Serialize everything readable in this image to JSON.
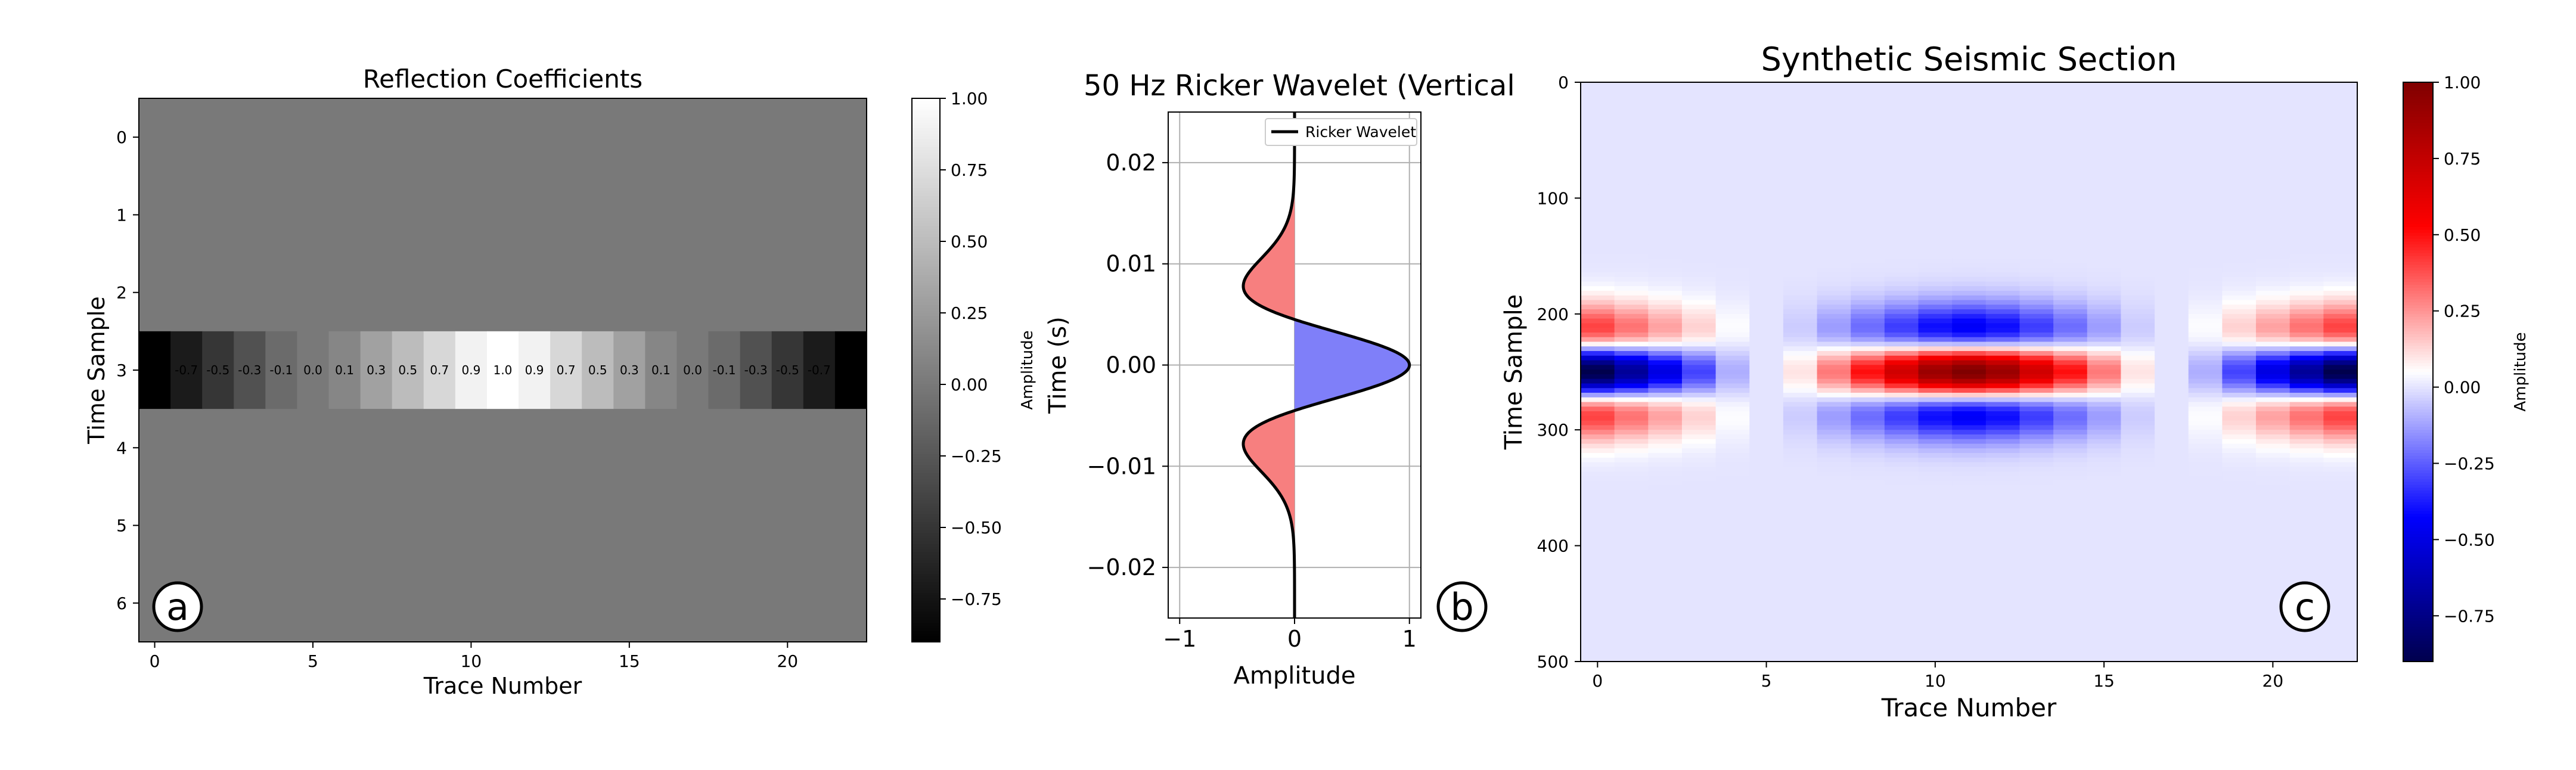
{
  "figure": {
    "panel_labels": [
      "a",
      "b",
      "c"
    ]
  },
  "chart_data": [
    {
      "type": "heatmap",
      "title": "Reflection Coefficients",
      "xlabel": "Trace Number",
      "ylabel": "Time Sample",
      "x_ticks": [
        0,
        5,
        10,
        15,
        20
      ],
      "y_ticks": [
        0,
        1,
        2,
        3,
        4,
        5,
        6
      ],
      "xlim": [
        -0.5,
        22.5
      ],
      "ylim": [
        6.5,
        -0.5
      ],
      "rows": 7,
      "cols": 23,
      "active_row": 3,
      "row_values": [
        -0.9,
        -0.7,
        -0.5,
        -0.3,
        -0.1,
        0.0,
        0.1,
        0.3,
        0.5,
        0.7,
        0.9,
        1.0,
        0.9,
        0.7,
        0.5,
        0.3,
        0.1,
        0.0,
        -0.1,
        -0.3,
        -0.5,
        -0.7,
        -0.9
      ],
      "cell_labels": [
        "-0.9",
        "-0.7",
        "-0.5",
        "-0.3",
        "-0.1",
        "0.0",
        "0.1",
        "0.3",
        "0.5",
        "0.7",
        "0.9",
        "1.0",
        "0.9",
        "0.7",
        "0.5",
        "0.3",
        "0.1",
        "0.0",
        "-0.1",
        "-0.3",
        "-0.5",
        "-0.7",
        "-0.9"
      ],
      "background_value": 0.0,
      "colormap": "gray",
      "colorbar": {
        "label": "Amplitude",
        "range": [
          -0.9,
          1.0
        ],
        "ticks": [
          1.0,
          0.75,
          0.5,
          0.25,
          0.0,
          -0.25,
          -0.5,
          -0.75
        ],
        "tick_labels": [
          "1.00",
          "0.75",
          "0.50",
          "0.25",
          "0.00",
          "−0.25",
          "−0.50",
          "−0.75"
        ]
      },
      "grid": false
    },
    {
      "type": "line",
      "title": "50 Hz Ricker Wavelet (Vertical",
      "xlabel": "Amplitude",
      "ylabel": "Time (s)",
      "frequency_hz": 50,
      "xlim": [
        -1.1,
        1.1
      ],
      "ylim": [
        -0.025,
        0.025
      ],
      "x_ticks": [
        -1,
        0,
        1
      ],
      "x_tick_labels": [
        "−1",
        "0",
        "1"
      ],
      "y_ticks": [
        0.02,
        0.01,
        0.0,
        -0.01,
        -0.02
      ],
      "y_tick_labels": [
        "0.02",
        "0.01",
        "0.00",
        "−0.01",
        "−0.02"
      ],
      "series": [
        {
          "name": "Ricker Wavelet",
          "color": "#000000"
        }
      ],
      "fill_positive_color": "#7f7ff9",
      "fill_negative_color": "#f77f7f",
      "legend": {
        "position": "top-right",
        "entries": [
          "Ricker Wavelet"
        ]
      },
      "grid": true
    },
    {
      "type": "heatmap",
      "title": "Synthetic Seismic Section",
      "xlabel": "Trace Number",
      "ylabel": "Time Sample",
      "x_ticks": [
        0,
        5,
        10,
        15,
        20
      ],
      "y_ticks": [
        0,
        100,
        200,
        300,
        400,
        500
      ],
      "xlim": [
        -0.5,
        22.5
      ],
      "ylim": [
        500,
        0
      ],
      "center_sample": 250,
      "sample_interval_s": 0.0002,
      "frequency_hz": 50,
      "trace_reflectivity": [
        -0.9,
        -0.7,
        -0.5,
        -0.3,
        -0.1,
        0.0,
        0.1,
        0.3,
        0.5,
        0.7,
        0.9,
        1.0,
        0.9,
        0.7,
        0.5,
        0.3,
        0.1,
        0.0,
        -0.1,
        -0.3,
        -0.5,
        -0.7,
        -0.9
      ],
      "colormap": "seismic",
      "colorbar": {
        "label": "Amplitude",
        "range": [
          -0.9,
          1.0
        ],
        "ticks": [
          1.0,
          0.75,
          0.5,
          0.25,
          0.0,
          -0.25,
          -0.5,
          -0.75
        ],
        "tick_labels": [
          "1.00",
          "0.75",
          "0.50",
          "0.25",
          "0.00",
          "−0.25",
          "−0.50",
          "−0.75"
        ]
      },
      "grid": false
    }
  ]
}
